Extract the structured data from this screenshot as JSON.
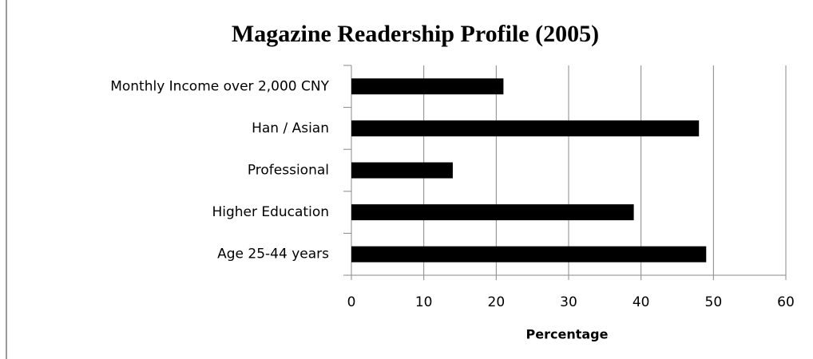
{
  "chart_data": {
    "type": "bar",
    "orientation": "horizontal",
    "title": "Magazine Readership Profile (2005)",
    "x_label": "Percentage",
    "categories": [
      "Monthly Income over 2,000 CNY",
      "Han / Asian",
      "Professional",
      "Higher Education",
      "Age 25-44 years"
    ],
    "values": [
      21,
      48,
      14,
      39,
      49
    ],
    "color": "#000000",
    "xlim": [
      0,
      60
    ],
    "xticks": [
      0,
      10,
      20,
      30,
      40,
      50,
      60
    ],
    "grid": true
  }
}
